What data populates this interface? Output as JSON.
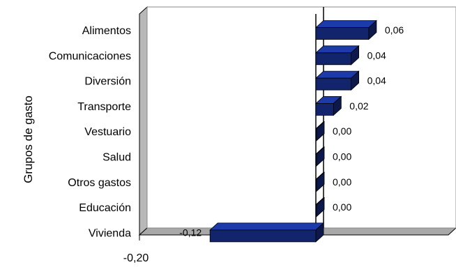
{
  "chart_data": {
    "type": "bar",
    "orientation": "horizontal",
    "three_d": true,
    "categories": [
      "Alimentos",
      "Comunicaciones",
      "Diversión",
      "Transporte",
      "Vestuario",
      "Salud",
      "Otros gastos",
      "Educación",
      "Vivienda"
    ],
    "values": [
      0.06,
      0.04,
      0.04,
      0.02,
      0.0,
      0.0,
      0.0,
      0.0,
      -0.12
    ],
    "data_labels": [
      "0,06",
      "0,04",
      "0,04",
      "0,02",
      "0,00",
      "0,00",
      "0,00",
      "0,00",
      "-0,12"
    ],
    "ylabel": "Grupos de gasto",
    "xlim": [
      -0.2,
      0.12
    ],
    "x_tick_labels": [
      "-0,20"
    ],
    "bar_color": "#12246b",
    "grid": false,
    "legend": "none"
  }
}
